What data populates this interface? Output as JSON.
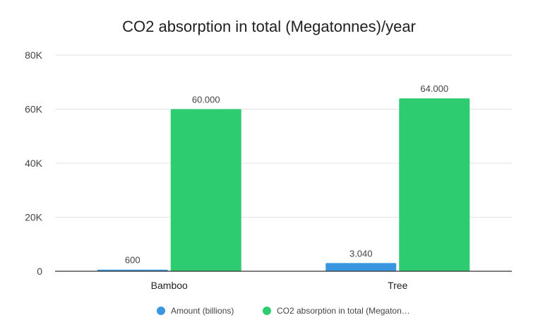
{
  "chart_data": {
    "type": "bar",
    "title": "CO2 absorption in total (Megatonnes)/year",
    "categories": [
      "Bamboo",
      "Tree"
    ],
    "series": [
      {
        "name": "Amount (billions)",
        "legend_label": "Amount (billions)",
        "color": "#3b96e0",
        "values": [
          600,
          3040
        ],
        "data_labels": [
          "600",
          "3.040"
        ]
      },
      {
        "name": "CO2 absorption in total (Megatonnes)/year",
        "legend_label": "CO2 absorption in total (Megaton…",
        "color": "#2ecc71",
        "values": [
          60000,
          64000
        ],
        "data_labels": [
          "60.000",
          "64.000"
        ]
      }
    ],
    "y_ticks": [
      {
        "value": 0,
        "label": "0"
      },
      {
        "value": 20000,
        "label": "20K"
      },
      {
        "value": 40000,
        "label": "40K"
      },
      {
        "value": 60000,
        "label": "60K"
      },
      {
        "value": 80000,
        "label": "80K"
      }
    ],
    "ylim": [
      0,
      80000
    ],
    "grid": true,
    "legend_position": "bottom"
  }
}
